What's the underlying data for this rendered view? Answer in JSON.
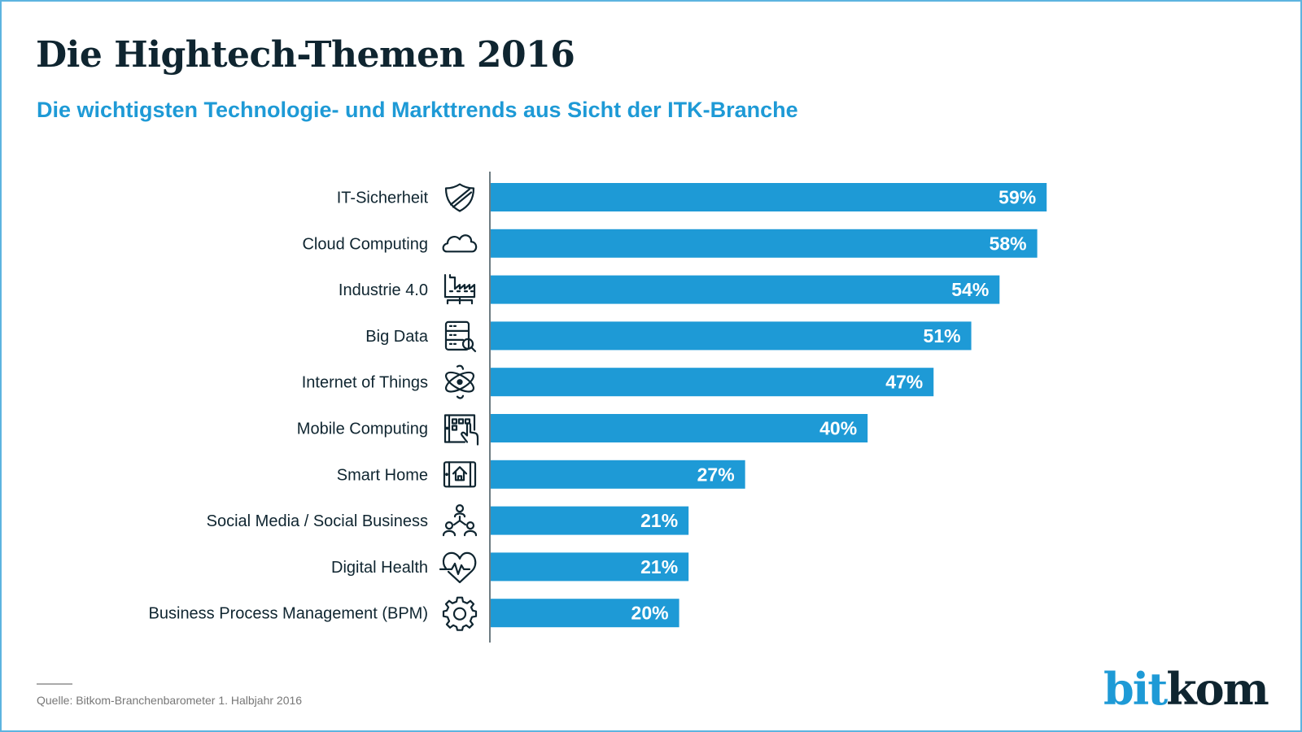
{
  "header": {
    "title": "Die Hightech-Themen 2016",
    "subtitle": "Die wichtigsten Technologie- und Markttrends aus Sicht der ITK-Branche"
  },
  "footer": {
    "source": "Quelle: Bitkom-Branchenbarometer 1. Halbjahr 2016",
    "logo_part1": "bit",
    "logo_part2": "kom"
  },
  "colors": {
    "bar": "#1e9ad6",
    "text_dark": "#0f2530",
    "accent": "#1e9ad6"
  },
  "chart_data": {
    "type": "bar",
    "orientation": "horizontal",
    "title": "Die Hightech-Themen 2016",
    "subtitle": "Die wichtigsten Technologie- und Markttrends aus Sicht der ITK-Branche",
    "xlabel": "",
    "ylabel": "",
    "unit": "%",
    "xlim": [
      0,
      60
    ],
    "grid": false,
    "legend": "none",
    "categories": [
      "IT-Sicherheit",
      "Cloud Computing",
      "Industrie 4.0",
      "Big Data",
      "Internet of Things",
      "Mobile Computing",
      "Smart Home",
      "Social Media / Social Business",
      "Digital Health",
      "Business Process Management (BPM)"
    ],
    "values": [
      59,
      58,
      54,
      51,
      47,
      40,
      27,
      21,
      21,
      20
    ],
    "value_labels": [
      "59%",
      "58%",
      "54%",
      "51%",
      "47%",
      "40%",
      "27%",
      "21%",
      "21%",
      "20%"
    ],
    "icons": [
      "shield-icon",
      "cloud-icon",
      "factory-icon",
      "database-search-icon",
      "atom-icon",
      "tablet-touch-icon",
      "tablet-home-icon",
      "people-network-icon",
      "heart-pulse-icon",
      "gear-icon"
    ]
  }
}
